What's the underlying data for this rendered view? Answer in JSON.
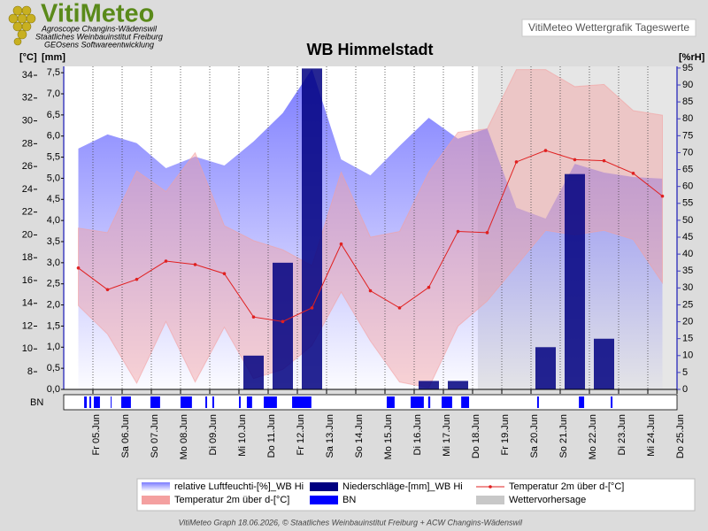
{
  "header": {
    "logo": "VitiMeteo",
    "lines": [
      "Agroscope Changins-Wädenswil",
      "Staatliches Weinbauinstitut Freiburg",
      "GEOsens Softwareentwicklung"
    ],
    "badge": "VitiMeteo Wettergrafik Tageswerte"
  },
  "footer": "VitiMeteo Graph 18.06.2026, © Staatliches Weinbauinstitut Freiburg + ACW Changins-Wädenswil",
  "chart_data": {
    "type": "weather",
    "title": "WB Himmelstadt",
    "y_label": "[°C]",
    "y2_label": "[mm]",
    "y3_label": "[%rH]",
    "categories": [
      "Fr 05.Jun",
      "Sa 06.Jun",
      "So 07.Jun",
      "Mo 08.Jun",
      "Di 09.Jun",
      "Mi 10.Jun",
      "Do 11.Jun",
      "Fr 12.Jun",
      "Sa 13.Jun",
      "So 14.Jun",
      "Mo 15.Jun",
      "Di 16.Jun",
      "Mi 17.Jun",
      "Do 18.Jun",
      "Fr 19.Jun",
      "Sa 20.Jun",
      "So 21.Jun",
      "Mo 22.Jun",
      "Di 23.Jun",
      "Mi 24.Jun",
      "Do 25.Jun"
    ],
    "ylim": [
      6.45,
      34.78
    ],
    "yticks": [
      8,
      10,
      12,
      14,
      16,
      18,
      20,
      22,
      24,
      26,
      28,
      30,
      32,
      34
    ],
    "y2lim": [
      0,
      7.65
    ],
    "y2ticks": [
      {
        "value": 0,
        "label": "0,0"
      },
      {
        "value": 0.5,
        "label": "0,5"
      },
      {
        "value": 1,
        "label": "1,0"
      },
      {
        "value": 1.5,
        "label": "1,5"
      },
      {
        "value": 2,
        "label": "2,0"
      },
      {
        "value": 2.5,
        "label": "2,5"
      },
      {
        "value": 3,
        "label": "3,0"
      },
      {
        "value": 3.5,
        "label": "3,5"
      },
      {
        "value": 4,
        "label": "4,0"
      },
      {
        "value": 4.5,
        "label": "4,5"
      },
      {
        "value": 5,
        "label": "5,0"
      },
      {
        "value": 5.5,
        "label": "5,5"
      },
      {
        "value": 6,
        "label": "6,0"
      },
      {
        "value": 6.5,
        "label": "6,5"
      },
      {
        "value": 7,
        "label": "7,0"
      },
      {
        "value": 7.5,
        "label": "7,5"
      }
    ],
    "y3lim": [
      0,
      95.5
    ],
    "y3ticks": [
      0,
      5,
      10,
      15,
      20,
      25,
      30,
      35,
      40,
      45,
      50,
      55,
      60,
      65,
      70,
      75,
      80,
      85,
      90,
      95
    ],
    "bn_label": "BN",
    "series": [
      {
        "name": "relative Luftfeuchti-[%]_WB Hi",
        "type": "area",
        "axis": "y3",
        "color": "#6464ff",
        "values": [
          71.2,
          75.4,
          72.8,
          65.4,
          68.8,
          66.2,
          73.3,
          81.7,
          94.7,
          68.0,
          63.3,
          72.0,
          80.3,
          74.1,
          77.2,
          53.7,
          50.5,
          66.7,
          64.1,
          62.8,
          62.3
        ]
      },
      {
        "name": "Niederschläge-[mm]_WB Hi",
        "type": "bar",
        "axis": "y2",
        "color": "#000080",
        "values": [
          0,
          0,
          0,
          0,
          0,
          0,
          0.8,
          3.0,
          7.6,
          0,
          0,
          0,
          0.2,
          0.2,
          0,
          0,
          1.0,
          5.1,
          1.2,
          0,
          0
        ]
      },
      {
        "name": "Temperatur 2m über d-[°C]",
        "type": "line",
        "axis": "y",
        "color": "#e02020",
        "values": [
          17.1,
          15.2,
          16.1,
          17.7,
          17.4,
          16.6,
          12.8,
          12.4,
          13.6,
          19.2,
          15.1,
          13.6,
          15.4,
          20.3,
          20.2,
          26.4,
          27.4,
          26.6,
          26.5,
          25.4,
          23.4
        ]
      },
      {
        "name": "Temperatur 2m über d-[°C]",
        "type": "range",
        "axis": "y",
        "color": "#f4a0a0",
        "high": [
          20.6,
          20.2,
          25.6,
          23.8,
          27.2,
          20.8,
          19.5,
          18.7,
          17.3,
          25.5,
          19.8,
          20.3,
          25.5,
          29.0,
          29.3,
          34.5,
          34.5,
          33.0,
          33.2,
          30.9,
          30.5
        ],
        "low": [
          13.8,
          11.3,
          7.0,
          12.4,
          7.1,
          11.9,
          7.4,
          8.2,
          10.3,
          15.0,
          10.7,
          7.1,
          6.6,
          12.0,
          14.2,
          17.3,
          20.4,
          20.0,
          20.4,
          19.6,
          15.8
        ]
      },
      {
        "name": "BN",
        "type": "intervals",
        "color": "#0000ff",
        "intervals": [
          [
            -0.3,
            -0.21
          ],
          [
            -0.12,
            -0.06
          ],
          [
            0.03,
            0.24
          ],
          [
            0.61,
            0.64
          ],
          [
            0.97,
            1.3
          ],
          [
            1.97,
            2.3
          ],
          [
            3.0,
            3.39
          ],
          [
            3.85,
            3.91
          ],
          [
            4.09,
            4.15
          ],
          [
            5.0,
            5.06
          ],
          [
            5.27,
            5.45
          ],
          [
            5.85,
            6.3
          ],
          [
            6.82,
            7.48
          ],
          [
            10.06,
            10.33
          ],
          [
            10.88,
            11.33
          ],
          [
            11.48,
            11.55
          ],
          [
            11.94,
            12.3
          ],
          [
            12.61,
            12.88
          ],
          [
            15.21,
            15.27
          ],
          [
            16.64,
            16.82
          ],
          [
            17.73,
            17.79
          ]
        ]
      },
      {
        "name": "Wettervorhersage",
        "type": "shade",
        "color": "#c8c8c8",
        "start": 13.18,
        "end": 20
      }
    ]
  }
}
